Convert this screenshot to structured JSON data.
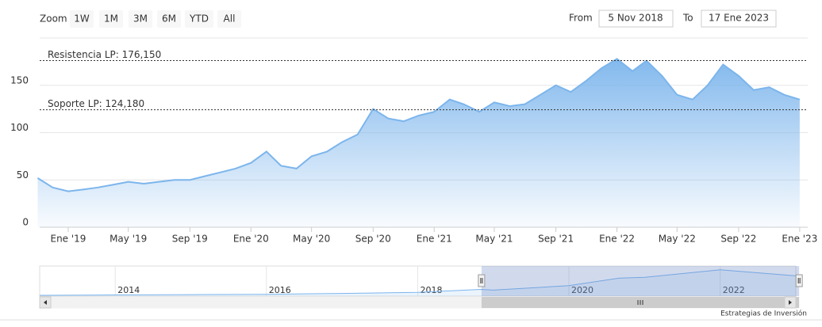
{
  "chart_data": [
    {
      "type": "area",
      "zoom_label": "Zoom",
      "buttons": [
        "1W",
        "1M",
        "3M",
        "6M",
        "YTD",
        "All"
      ],
      "from_label": "From",
      "to_label": "To",
      "xlim": [
        {
          "value": "2018-11-05",
          "label": "5 Nov 2018"
        },
        {
          "value": "2023-01-17",
          "label": "17 Ene 2023"
        }
      ],
      "ylim": [
        0,
        200
      ],
      "yticks": [
        0,
        50,
        100,
        150
      ],
      "xticks": [
        {
          "value": "2019-01",
          "label": "Ene '19"
        },
        {
          "value": "2019-05",
          "label": "May '19"
        },
        {
          "value": "2019-09",
          "label": "Sep '19"
        },
        {
          "value": "2020-01",
          "label": "Ene '20"
        },
        {
          "value": "2020-05",
          "label": "May '20"
        },
        {
          "value": "2020-09",
          "label": "Sep '20"
        },
        {
          "value": "2021-01",
          "label": "Ene '21"
        },
        {
          "value": "2021-05",
          "label": "May '21"
        },
        {
          "value": "2021-09",
          "label": "Sep '21"
        },
        {
          "value": "2022-01",
          "label": "Ene '22"
        },
        {
          "value": "2022-05",
          "label": "May '22"
        },
        {
          "value": "2022-09",
          "label": "Sep '22"
        },
        {
          "value": "2023-01",
          "label": "Ene '23"
        }
      ],
      "x": [
        "2018-11",
        "2018-12",
        "2019-01",
        "2019-02",
        "2019-03",
        "2019-04",
        "2019-05",
        "2019-06",
        "2019-07",
        "2019-08",
        "2019-09",
        "2019-10",
        "2019-11",
        "2019-12",
        "2020-01",
        "2020-02",
        "2020-03",
        "2020-04",
        "2020-05",
        "2020-06",
        "2020-07",
        "2020-08",
        "2020-09",
        "2020-10",
        "2020-11",
        "2020-12",
        "2021-01",
        "2021-02",
        "2021-03",
        "2021-04",
        "2021-05",
        "2021-06",
        "2021-07",
        "2021-08",
        "2021-09",
        "2021-10",
        "2021-11",
        "2021-12",
        "2022-01",
        "2022-02",
        "2022-03",
        "2022-04",
        "2022-05",
        "2022-06",
        "2022-07",
        "2022-08",
        "2022-09",
        "2022-10",
        "2022-11",
        "2022-12",
        "2023-01"
      ],
      "series": [
        {
          "color": "#7cb5ec",
          "values": [
            52,
            42,
            38,
            40,
            42,
            45,
            48,
            46,
            48,
            50,
            50,
            54,
            58,
            62,
            68,
            80,
            65,
            62,
            75,
            80,
            90,
            98,
            125,
            115,
            112,
            118,
            122,
            135,
            130,
            122,
            132,
            128,
            130,
            140,
            150,
            143,
            155,
            168,
            178,
            165,
            176,
            160,
            140,
            135,
            150,
            172,
            160,
            145,
            148,
            140,
            135
          ]
        }
      ],
      "plot_lines": [
        {
          "value": 176.15,
          "label": "Resistencia LP: 176,150"
        },
        {
          "value": 124.18,
          "label": "Soporte LP: 124,180"
        }
      ],
      "credits": "Estrategias de Inversión"
    },
    {
      "type": "area",
      "xlim": [
        "2013",
        "2023"
      ],
      "ylim": [
        0,
        200
      ],
      "xticks": [
        "2014",
        "2016",
        "2018",
        "2020",
        "2022"
      ],
      "x": [
        "2013",
        "2014",
        "2015",
        "2016",
        "2017",
        "2018",
        "2018-11",
        "2019",
        "2020",
        "2020-09",
        "2021",
        "2022",
        "2023"
      ],
      "series": [
        {
          "color": "#7cb5ec",
          "values": [
            5,
            8,
            10,
            12,
            18,
            25,
            45,
            40,
            70,
            120,
            125,
            175,
            135
          ]
        }
      ]
    }
  ]
}
